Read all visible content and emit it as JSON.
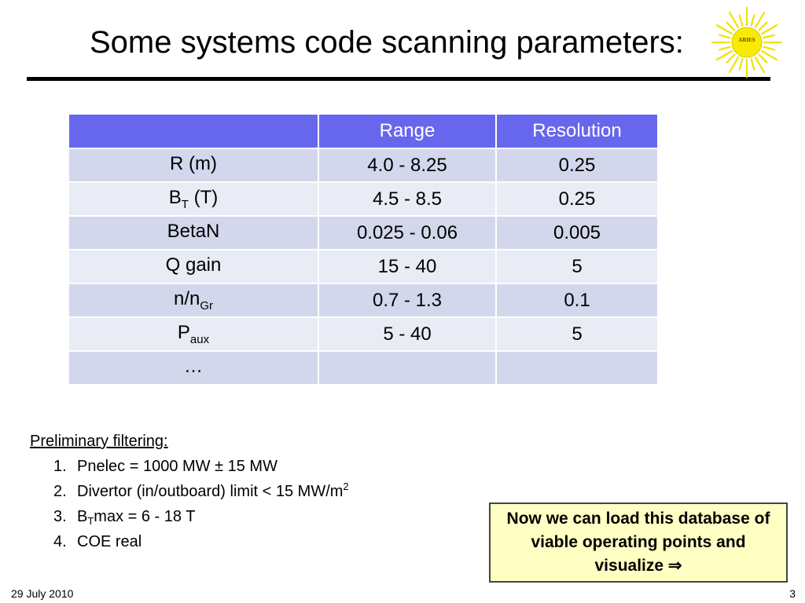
{
  "slide": {
    "title": "Some systems code scanning parameters:",
    "logo_text": "ARIES"
  },
  "table": {
    "headers": [
      "",
      "Range",
      "Resolution"
    ],
    "rows": [
      {
        "param": "R (m)",
        "param_main": "R (m)",
        "param_sub": "",
        "param_suffix": "",
        "range": "4.0 - 8.25",
        "resolution": "0.25"
      },
      {
        "param": "BT (T)",
        "param_main": "B",
        "param_sub": "T",
        "param_suffix": " (T)",
        "range": "4.5 - 8.5",
        "resolution": "0.25"
      },
      {
        "param": "BetaN",
        "param_main": "BetaN",
        "param_sub": "",
        "param_suffix": "",
        "range": "0.025 - 0.06",
        "resolution": "0.005"
      },
      {
        "param": "Q gain",
        "param_main": "Q gain",
        "param_sub": "",
        "param_suffix": "",
        "range": "15 - 40",
        "resolution": "5"
      },
      {
        "param": "n/nGr",
        "param_main": "n/n",
        "param_sub": "Gr",
        "param_suffix": "",
        "range": "0.7 - 1.3",
        "resolution": "0.1"
      },
      {
        "param": "Paux",
        "param_main": "P",
        "param_sub": "aux",
        "param_suffix": "",
        "range": "5 - 40",
        "resolution": "5"
      },
      {
        "param": "…",
        "param_main": "…",
        "param_sub": "",
        "param_suffix": "",
        "range": "",
        "resolution": ""
      }
    ]
  },
  "filtering": {
    "heading": "Preliminary filtering:",
    "items": [
      {
        "num": "1.",
        "text": "Pnelec = 1000 MW ± 15 MW"
      },
      {
        "num": "2.",
        "text_main": "Divertor (in/outboard) limit < 15 MW/m",
        "text_sup": "2"
      },
      {
        "num": "3.",
        "text_a": "B",
        "text_sub": "T",
        "text_b": "max = 6 - 18 T"
      },
      {
        "num": "4.",
        "text": "COE real"
      }
    ]
  },
  "callout": {
    "text": "Now we can load this database of viable operating points and visualize ⇒"
  },
  "footer": {
    "date": "29 July 2010",
    "page": "3"
  },
  "colors": {
    "header_bg": "#6767ee",
    "row_dark": "#d3d7ec",
    "row_light": "#e9ebf5",
    "callout_bg": "#ffffc4",
    "logo_sun": "#f2e600"
  }
}
